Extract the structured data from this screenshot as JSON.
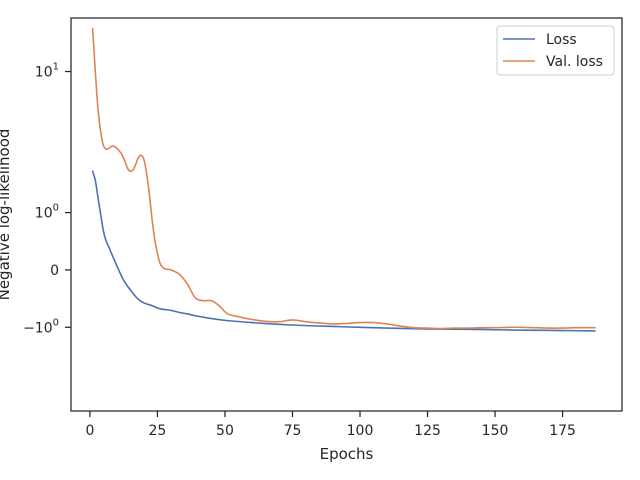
{
  "chart_data": {
    "type": "line",
    "title": "",
    "xlabel": "Epochs",
    "ylabel": "Negative log-likelihood",
    "yscale": "symlog",
    "xlim": [
      -7,
      197
    ],
    "ylim": [
      -4.5,
      20
    ],
    "grid": false,
    "legend_position": "top-right",
    "x_ticks": [
      {
        "value": 0,
        "label": "0"
      },
      {
        "value": 25,
        "label": "25"
      },
      {
        "value": 50,
        "label": "50"
      },
      {
        "value": 75,
        "label": "75"
      },
      {
        "value": 100,
        "label": "100"
      },
      {
        "value": 125,
        "label": "125"
      },
      {
        "value": 150,
        "label": "150"
      },
      {
        "value": 175,
        "label": "175"
      }
    ],
    "y_ticks": [
      {
        "value": 10,
        "base": "10",
        "exp": "1"
      },
      {
        "value": 1,
        "base": "10",
        "exp": "0"
      },
      {
        "value": 0,
        "base": "0",
        "exp": ""
      },
      {
        "value": -1,
        "base": "−10",
        "exp": "0"
      }
    ],
    "series": [
      {
        "name": "Loss",
        "color": "#4c72b0",
        "x": [
          1,
          2,
          3,
          4,
          5,
          6,
          7,
          8,
          10,
          12,
          14,
          16,
          18,
          20,
          23,
          26,
          30,
          33,
          36,
          40,
          45,
          50,
          60,
          70,
          80,
          90,
          100,
          110,
          125,
          140,
          150,
          160,
          175,
          187
        ],
        "y": [
          2.3,
          1.95,
          1.4,
          0.95,
          0.6,
          0.42,
          0.32,
          0.22,
          0.05,
          -0.1,
          -0.22,
          -0.33,
          -0.43,
          -0.49,
          -0.54,
          -0.6,
          -0.63,
          -0.67,
          -0.7,
          -0.75,
          -0.8,
          -0.84,
          -0.89,
          -0.93,
          -0.96,
          -0.98,
          -1.0,
          -1.02,
          -1.04,
          -1.05,
          -1.06,
          -1.07,
          -1.08,
          -1.09
        ]
      },
      {
        "name": "Val. loss",
        "color": "#dd8452",
        "x": [
          1,
          2,
          3,
          4,
          5,
          6,
          7,
          8,
          9,
          10,
          12,
          14,
          15,
          16,
          17,
          18,
          19,
          20,
          21,
          22,
          23,
          24,
          25,
          26,
          27,
          28,
          30,
          33,
          36,
          39,
          42,
          45,
          48,
          51,
          55,
          60,
          65,
          70,
          75,
          80,
          85,
          90,
          95,
          100,
          105,
          110,
          115,
          120,
          125,
          130,
          135,
          140,
          145,
          150,
          155,
          160,
          165,
          170,
          175,
          180,
          187
        ],
        "y": [
          17.5,
          10.0,
          6.0,
          4.3,
          3.5,
          3.3,
          3.35,
          3.45,
          3.45,
          3.35,
          3.0,
          2.4,
          2.3,
          2.35,
          2.6,
          2.9,
          3.0,
          2.8,
          2.2,
          1.5,
          0.85,
          0.45,
          0.22,
          0.08,
          0.03,
          0.01,
          0.0,
          -0.05,
          -0.18,
          -0.4,
          -0.45,
          -0.45,
          -0.55,
          -0.7,
          -0.76,
          -0.82,
          -0.86,
          -0.87,
          -0.83,
          -0.87,
          -0.9,
          -0.92,
          -0.91,
          -0.89,
          -0.89,
          -0.92,
          -0.97,
          -1.01,
          -1.02,
          -1.03,
          -1.02,
          -1.02,
          -1.01,
          -1.01,
          -1.0,
          -1.0,
          -1.01,
          -1.02,
          -1.02,
          -1.01,
          -1.01
        ]
      }
    ]
  }
}
